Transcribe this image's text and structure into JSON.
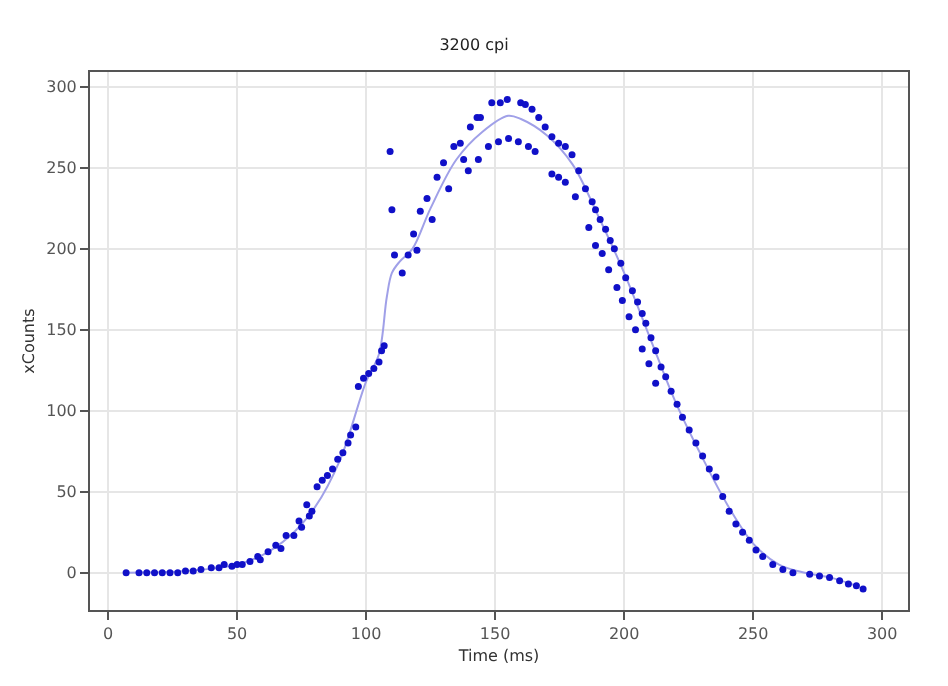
{
  "chart_data": {
    "type": "scatter",
    "subtitle": "3200 cpi",
    "xlabel": "Time (ms)",
    "ylabel": "xCounts",
    "xlim": [
      -7,
      310
    ],
    "ylim": [
      -23,
      309
    ],
    "xticks": [
      0,
      50,
      100,
      150,
      200,
      250,
      300
    ],
    "yticks": [
      0,
      50,
      100,
      150,
      200,
      250,
      300
    ],
    "grid": true,
    "legend": false,
    "series": [
      {
        "type": "line",
        "color": "#a0a0e8",
        "line_style": "solid",
        "marker": "none",
        "x": [
          7,
          30,
          50,
          60,
          70,
          80,
          90,
          100,
          105,
          108,
          110,
          113,
          118,
          125,
          135,
          145,
          155,
          160,
          170,
          180,
          190,
          200,
          210,
          220,
          230,
          240,
          250,
          260,
          270,
          280,
          290
        ],
        "values": [
          0,
          1,
          5,
          11,
          22,
          40,
          70,
          118,
          135,
          170,
          185,
          192,
          200,
          225,
          255,
          272,
          282,
          280,
          270,
          252,
          220,
          185,
          145,
          105,
          72,
          42,
          18,
          5,
          0,
          -3,
          -8
        ]
      },
      {
        "color": "#1010c8",
        "marker": "circle",
        "x": [
          7,
          12,
          15,
          18,
          21,
          24,
          27,
          30,
          33,
          36,
          40,
          43,
          45,
          48,
          50,
          52,
          55,
          58,
          59,
          62,
          65,
          67,
          69,
          72,
          74,
          75,
          77,
          78,
          79,
          81,
          83,
          85,
          87,
          89,
          91,
          93,
          94,
          96,
          97,
          99,
          101,
          103,
          105,
          106,
          107,
          109.3,
          110,
          111,
          114,
          116.3,
          118.4,
          119.7,
          121,
          123.6,
          125.6,
          127.5,
          130,
          132,
          134,
          136.5,
          137.8,
          140.4,
          143,
          144.3,
          148.7,
          152,
          154.7,
          159.9,
          161.7,
          164.3,
          166.9,
          169.4,
          172,
          174.6,
          177.2,
          179.8,
          182.4,
          185,
          187.6,
          188.9,
          190.7,
          192.8,
          194.6,
          196.2,
          198.7,
          200.6,
          203.2,
          205.2,
          207,
          208.4,
          210.4,
          212.2,
          214.3,
          216.1,
          218.2,
          220.5,
          222.6,
          225.2,
          227.8,
          230.4,
          233,
          235.6,
          238.2,
          240.7,
          243.3,
          245.9,
          248.5,
          251.1,
          253.7,
          257.6,
          261.5,
          265.4,
          271.9,
          275.7,
          279.6,
          283.5,
          286.9,
          290,
          292.6,
          139.6,
          143.5,
          147.4,
          151.3,
          155.2,
          159,
          162.9,
          165.5,
          172,
          174.6,
          177.2,
          181.1,
          186.3,
          188.9,
          191.5,
          194,
          197.2,
          199.3,
          201.9,
          204.4,
          207,
          209.6,
          212.2
        ],
        "values": [
          0,
          0,
          0,
          0,
          0,
          0,
          0,
          1,
          1,
          2,
          3,
          3,
          5,
          4,
          5,
          5,
          7,
          10,
          8,
          13,
          17,
          15,
          23,
          23,
          32,
          28,
          42,
          35,
          38,
          53,
          57,
          60,
          64,
          70,
          74,
          80,
          85,
          90,
          115,
          120,
          123,
          126,
          130,
          137,
          140,
          260,
          224,
          196,
          185,
          196,
          209,
          199,
          223,
          231,
          218,
          244,
          253,
          237,
          263,
          265,
          255,
          275,
          281,
          281,
          290,
          290,
          292,
          290,
          289,
          286,
          281,
          275,
          269,
          265,
          263,
          258,
          248,
          237,
          229,
          224,
          218,
          212,
          205,
          200,
          191,
          182,
          174,
          167,
          160,
          154,
          145,
          137,
          127,
          121,
          112,
          104,
          96,
          88,
          80,
          72,
          64,
          59,
          47,
          38,
          30,
          25,
          20,
          14,
          10,
          5,
          2,
          0,
          -1,
          -2,
          -3,
          -5,
          -7,
          -8,
          -10,
          248,
          255,
          263,
          266,
          268,
          266,
          263,
          260,
          246,
          244,
          241,
          232,
          213,
          202,
          197,
          187,
          176,
          168,
          158,
          150,
          138,
          129,
          117
        ]
      }
    ]
  }
}
